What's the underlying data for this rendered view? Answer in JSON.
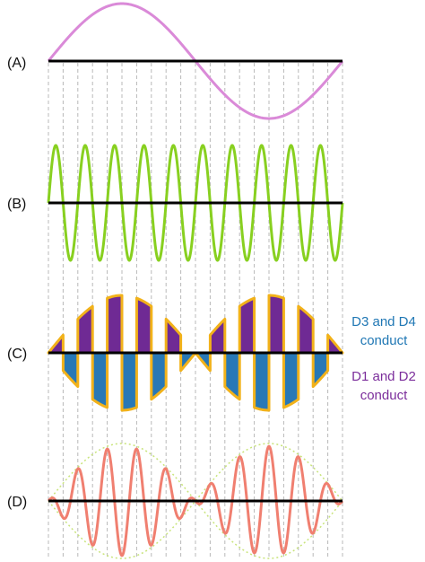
{
  "panels": [
    {
      "id": "A",
      "label": "(A)",
      "description_color": "#da8ad8"
    },
    {
      "id": "B",
      "label": "(B)",
      "description_color": "#88d020"
    },
    {
      "id": "C",
      "label": "(C)"
    },
    {
      "id": "D",
      "label": "(D)",
      "description_color": "#f07f70"
    }
  ],
  "legend": {
    "d34": {
      "line1": "D3 and D4",
      "line2": "conduct",
      "color": "#1f77b4"
    },
    "d12": {
      "line1": "D1 and D2",
      "line2": "conduct",
      "color": "#7b2d9b"
    }
  },
  "colors": {
    "axis": "#000000",
    "guide": "#b8b8b8",
    "wave_a": "#da8ad8",
    "wave_b": "#88d020",
    "wave_d": "#f07f70",
    "envelope_d": "#c8e47a",
    "segment_blue": "#2878b6",
    "segment_purple": "#6f2a94",
    "segment_outline": "#f2b21a"
  },
  "signal": {
    "modulating_cycles": 1,
    "carrier_cycles": 10
  }
}
